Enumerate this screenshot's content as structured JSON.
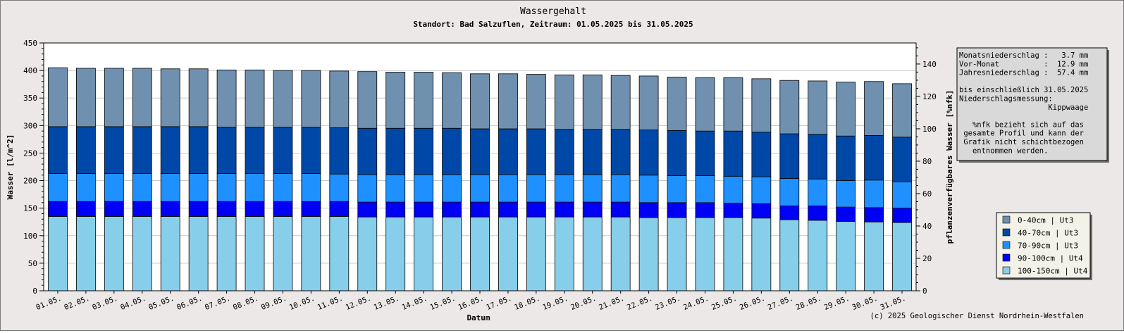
{
  "chart_data": {
    "type": "bar",
    "stacked": true,
    "title": "Wassergehalt",
    "subtitle": "Standort: Bad Salzuflen, Zeitraum: 01.05.2025 bis 31.05.2025",
    "xlabel": "Datum",
    "ylabel": "Wasser [l/m^2]",
    "y2label": "pflanzenverfügbares Wasser [%nfk]",
    "ylim": [
      0,
      450
    ],
    "yticks": [
      0,
      50,
      100,
      150,
      200,
      250,
      300,
      350,
      400,
      450
    ],
    "y2lim": [
      0,
      153
    ],
    "y2ticks": [
      0,
      20,
      40,
      60,
      80,
      100,
      120,
      140
    ],
    "grid": true,
    "legend_position": "right",
    "categories": [
      "01.05.",
      "02.05.",
      "03.05.",
      "04.05.",
      "05.05.",
      "06.05.",
      "07.05.",
      "08.05.",
      "09.05.",
      "10.05.",
      "11.05.",
      "12.05.",
      "13.05.",
      "14.05.",
      "15.05.",
      "16.05.",
      "17.05.",
      "18.05.",
      "19.05.",
      "20.05.",
      "21.05.",
      "22.05.",
      "23.05.",
      "24.05.",
      "25.05.",
      "26.05.",
      "27.05.",
      "28.05.",
      "29.05.",
      "30.05.",
      "31.05."
    ],
    "series": [
      {
        "name": "100-150cm | Ut4",
        "color": "#87ceeb",
        "values": [
          135,
          135,
          135,
          135,
          135,
          135,
          135,
          135,
          135,
          135,
          135,
          134,
          134,
          134,
          134,
          134,
          134,
          134,
          134,
          134,
          134,
          133,
          133,
          133,
          133,
          132,
          129,
          128,
          126,
          125,
          124
        ]
      },
      {
        "name": "90-100cm | Ut4",
        "color": "#0000f5",
        "values": [
          27,
          27,
          27,
          27,
          27,
          27,
          27,
          27,
          27,
          27,
          27,
          27,
          27,
          27,
          27,
          27,
          27,
          27,
          27,
          27,
          27,
          27,
          27,
          27,
          26,
          26,
          25,
          26,
          26,
          26,
          26
        ]
      },
      {
        "name": "70-90cm | Ut3",
        "color": "#1e90ff",
        "values": [
          51,
          51,
          51,
          51,
          51,
          51,
          51,
          51,
          51,
          51,
          50,
          50,
          50,
          50,
          50,
          50,
          50,
          50,
          50,
          50,
          50,
          50,
          49,
          49,
          49,
          49,
          50,
          49,
          48,
          50,
          48
        ]
      },
      {
        "name": "40-70cm | Ut3",
        "color": "#0048a8",
        "values": [
          85,
          85,
          85,
          85,
          85,
          85,
          84,
          84,
          84,
          84,
          84,
          84,
          84,
          84,
          84,
          83,
          83,
          83,
          82,
          82,
          82,
          82,
          82,
          81,
          82,
          81,
          81,
          81,
          81,
          81,
          81
        ]
      },
      {
        "name": "0-40cm | Ut3",
        "color": "#7090b0",
        "values": [
          107,
          106,
          106,
          106,
          105,
          105,
          104,
          104,
          103,
          103,
          103,
          103,
          102,
          102,
          101,
          100,
          100,
          99,
          99,
          99,
          98,
          98,
          97,
          97,
          97,
          97,
          97,
          97,
          98,
          98,
          97
        ]
      }
    ]
  },
  "info_box": {
    "lines": [
      "Monatsniederschlag :   3.7 mm",
      "Vor-Monat          :  12.9 mm",
      "Jahresniederschlag :  57.4 mm",
      "",
      "bis einschließlich 31.05.2025",
      "Niederschlagsmessung:",
      "                    Kippwaage",
      "",
      "   %nfk bezieht sich auf das",
      " gesamte Profil und kann der",
      " Grafik nicht schichtbezogen",
      "   entnommen werden."
    ]
  },
  "credit": "(c) 2025 Geologischer Dienst Nordrhein-Westfalen"
}
